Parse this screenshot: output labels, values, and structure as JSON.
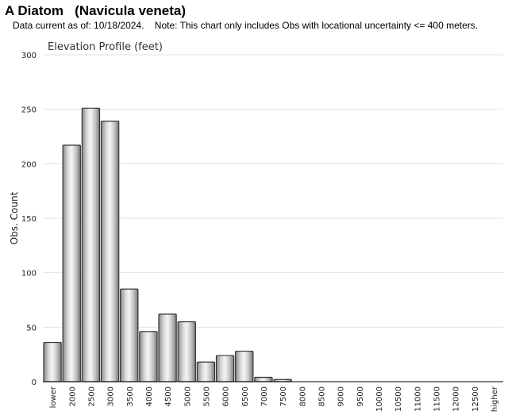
{
  "header": {
    "title": "A Diatom   (Navicula veneta)",
    "subtitle": "Data current as of: 10/18/2024.    Note: This chart only includes Obs with locational uncertainty <= 400 meters."
  },
  "chart_data": {
    "type": "bar",
    "title": "Elevation Profile (feet)",
    "xlabel": "",
    "ylabel": "Obs. Count",
    "ylim": [
      0,
      300
    ],
    "yticks": [
      0,
      50,
      100,
      150,
      200,
      250,
      300
    ],
    "grid": true,
    "legend": "none",
    "bar_color": "#b8b8b8",
    "categories": [
      "lower",
      "2000",
      "2500",
      "3000",
      "3500",
      "4000",
      "4500",
      "5000",
      "5500",
      "6000",
      "6500",
      "7000",
      "7500",
      "8000",
      "8500",
      "9000",
      "9500",
      "10000",
      "10500",
      "11000",
      "11500",
      "12000",
      "12500",
      "higher"
    ],
    "values": [
      36,
      217,
      251,
      239,
      85,
      46,
      62,
      55,
      18,
      24,
      28,
      4,
      2,
      0,
      0,
      0,
      0,
      0,
      0,
      0,
      0,
      0,
      0,
      0
    ]
  }
}
